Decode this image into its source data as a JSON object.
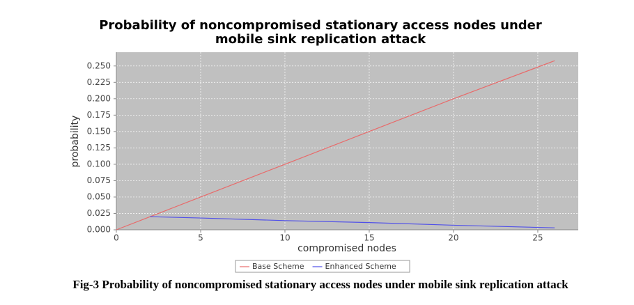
{
  "chart_data": {
    "type": "line",
    "title": "Probability of noncompromised stationary access nodes under",
    "subtitle": "mobile sink replication attack",
    "x_label": "compromised nodes",
    "y_label": "probability",
    "x": [
      0,
      2,
      5,
      10,
      15,
      20,
      26
    ],
    "series": [
      {
        "name": "Base Scheme",
        "color": "#e86a6a",
        "values": [
          0,
          0.02,
          0.05,
          0.1,
          0.15,
          0.2,
          0.258
        ]
      },
      {
        "name": "Enhanced Scheme",
        "color": "#5050e8",
        "values": [
          null,
          0.02,
          0.018,
          0.014,
          0.011,
          0.007,
          0.003
        ]
      }
    ],
    "xlim": [
      0,
      27.4
    ],
    "ylim": [
      0,
      0.271
    ],
    "xticks": [
      0,
      5,
      10,
      15,
      20,
      25
    ],
    "yticks": [
      {
        "value": 0,
        "label": "0.000"
      },
      {
        "value": 0.025,
        "label": "0.025"
      },
      {
        "value": 0.05,
        "label": "0.050"
      },
      {
        "value": 0.075,
        "label": "0.075"
      },
      {
        "value": 0.1,
        "label": "0.100"
      },
      {
        "value": 0.125,
        "label": "0.125"
      },
      {
        "value": 0.15,
        "label": "0.150"
      },
      {
        "value": 0.175,
        "label": "0.175"
      },
      {
        "value": 0.2,
        "label": "0.200"
      },
      {
        "value": 0.225,
        "label": "0.225"
      },
      {
        "value": 0.25,
        "label": "0.250"
      }
    ],
    "grid": true,
    "legend": "bottom",
    "caption": "Fig-3 Probability of noncompromised stationary access nodes under mobile sink replication attack"
  }
}
